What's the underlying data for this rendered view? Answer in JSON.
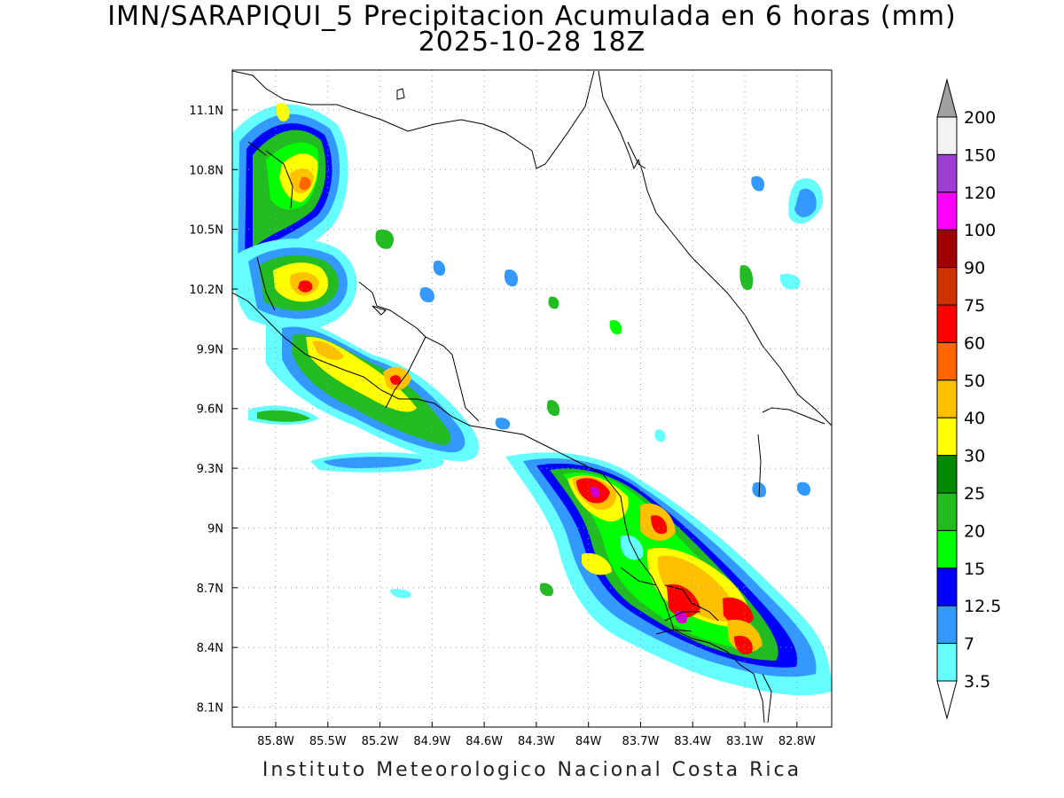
{
  "title_line1": "IMN/SARAPIQUI_5 Precipitacion Acumulada en 6 horas (mm)",
  "title_line2": "2025-10-28 18Z",
  "footer": "Instituto Meteorologico Nacional Costa Rica",
  "map": {
    "lon_range": [
      -86.05,
      -82.6
    ],
    "lat_range": [
      8.0,
      11.3
    ],
    "lon_ticks": [
      "85.8W",
      "85.5W",
      "85.2W",
      "84.9W",
      "84.6W",
      "84.3W",
      "84W",
      "83.7W",
      "83.4W",
      "83.1W",
      "82.8W"
    ],
    "lat_ticks": [
      "11.1N",
      "10.8N",
      "10.5N",
      "10.2N",
      "9.9N",
      "9.6N",
      "9.3N",
      "9N",
      "8.7N",
      "8.4N",
      "8.1N"
    ]
  },
  "colorbar": {
    "labels": [
      "200",
      "150",
      "120",
      "100",
      "90",
      "75",
      "60",
      "50",
      "40",
      "30",
      "25",
      "20",
      "15",
      "12.5",
      "7",
      "3.5"
    ],
    "colors": [
      "#a0a0a0",
      "#f2f2f2",
      "#9c3fd1",
      "#ff00ff",
      "#a00000",
      "#cc3300",
      "#ff0000",
      "#ff6600",
      "#ffc000",
      "#ffff00",
      "#008800",
      "#22bb22",
      "#00ff00",
      "#0000ff",
      "#3399ff",
      "#66ffff"
    ]
  }
}
